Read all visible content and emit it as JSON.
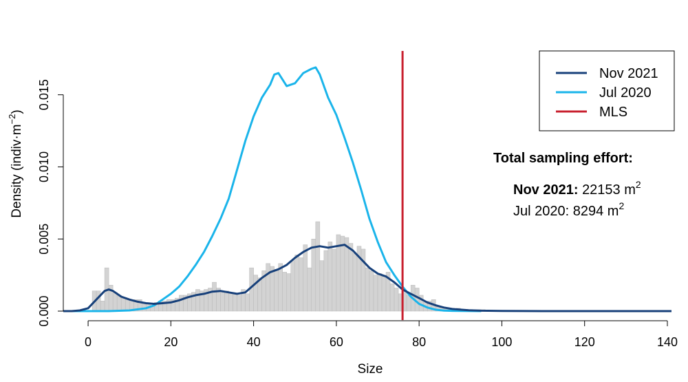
{
  "chart_data": {
    "type": "histogram+density-lines",
    "xlabel": "Size",
    "ylabel": "Density (indiv·m⁻²)",
    "ylabel_parts": {
      "main": "Density (indiv",
      "dot": "·",
      "unit": "m",
      "exp": "−2",
      "close": ")"
    },
    "xlim": [
      -5,
      141
    ],
    "ylim": [
      0,
      0.0178
    ],
    "x_ticks": [
      0,
      20,
      40,
      60,
      80,
      100,
      120,
      140
    ],
    "x_tick_labels": [
      "0",
      "20",
      "40",
      "60",
      "80",
      "100",
      "120",
      "140"
    ],
    "y_ticks": [
      0,
      0.005,
      0.01,
      0.015
    ],
    "y_tick_labels": [
      "0.000",
      "0.005",
      "0.010",
      "0.015"
    ],
    "histogram": {
      "color": "#d3d3d3",
      "bin_width": 1,
      "bins_start": [
        1,
        2,
        3,
        4,
        5,
        6,
        7,
        8,
        9,
        10,
        11,
        12,
        13,
        14,
        15,
        16,
        17,
        18,
        19,
        20,
        21,
        22,
        23,
        24,
        25,
        26,
        27,
        28,
        29,
        30,
        31,
        32,
        33,
        34,
        35,
        36,
        37,
        38,
        39,
        40,
        41,
        42,
        43,
        44,
        45,
        46,
        47,
        48,
        49,
        50,
        51,
        52,
        53,
        54,
        55,
        56,
        57,
        58,
        59,
        60,
        61,
        62,
        63,
        64,
        65,
        66,
        67,
        68,
        69,
        70,
        71,
        72,
        73,
        74,
        75,
        76,
        77,
        78,
        79,
        80,
        81,
        82,
        83,
        84,
        85,
        86,
        87,
        88,
        89,
        90,
        91,
        92,
        93,
        94,
        95
      ],
      "values": [
        0.0014,
        0.0014,
        0.0007,
        0.003,
        0.0018,
        0.0013,
        0.0011,
        0.0009,
        0.0008,
        0.0007,
        0.0008,
        0.0008,
        0.0006,
        0.0005,
        0.0004,
        0.0006,
        0.0007,
        0.0007,
        0.0008,
        0.0008,
        0.0009,
        0.0011,
        0.0011,
        0.0012,
        0.0013,
        0.0015,
        0.0014,
        0.0015,
        0.0016,
        0.002,
        0.0016,
        0.0013,
        0.0014,
        0.0013,
        0.0012,
        0.0011,
        0.0015,
        0.0012,
        0.003,
        0.0025,
        0.0023,
        0.0028,
        0.0033,
        0.0031,
        0.0029,
        0.0033,
        0.0027,
        0.0026,
        0.0035,
        0.0039,
        0.0037,
        0.0046,
        0.003,
        0.005,
        0.0062,
        0.0035,
        0.0042,
        0.0048,
        0.0043,
        0.0053,
        0.0052,
        0.0051,
        0.0047,
        0.004,
        0.0045,
        0.0043,
        0.003,
        0.0028,
        0.0025,
        0.0026,
        0.0024,
        0.0027,
        0.0019,
        0.0016,
        0.0012,
        0.0014,
        0.0011,
        0.0018,
        0.0016,
        0.0011,
        0.0006,
        0.0007,
        0.0008,
        0.0003,
        0.0003,
        0.0002,
        0.0002,
        0.0001,
        0.0002,
        0.0001,
        0.0001,
        0.0001,
        0.0001,
        0.0001,
        0.0001
      ]
    },
    "series": [
      {
        "name": "Nov 2021",
        "color": "#17407a",
        "x": [
          -6,
          -4,
          -2,
          0,
          2,
          4,
          5,
          6,
          8,
          10,
          12,
          14,
          16,
          18,
          20,
          22,
          24,
          26,
          28,
          30,
          32,
          34,
          36,
          38,
          40,
          42,
          44,
          46,
          48,
          50,
          52,
          54,
          56,
          58,
          60,
          62,
          64,
          66,
          68,
          70,
          72,
          74,
          76,
          78,
          80,
          82,
          84,
          86,
          88,
          90,
          92,
          95,
          100,
          110,
          120,
          130,
          141
        ],
        "y": [
          0,
          0,
          5e-05,
          0.0002,
          0.0008,
          0.0014,
          0.0015,
          0.0014,
          0.001,
          0.0008,
          0.00065,
          0.00055,
          0.0005,
          0.00055,
          0.0006,
          0.00075,
          0.00095,
          0.0011,
          0.0012,
          0.00135,
          0.0014,
          0.0013,
          0.0012,
          0.0013,
          0.0018,
          0.0023,
          0.0027,
          0.0029,
          0.0032,
          0.0037,
          0.0041,
          0.0044,
          0.0045,
          0.0044,
          0.0045,
          0.0046,
          0.0042,
          0.0036,
          0.003,
          0.0026,
          0.0024,
          0.002,
          0.0015,
          0.0012,
          0.0009,
          0.0006,
          0.0004,
          0.00025,
          0.00015,
          0.0001,
          6e-05,
          3e-05,
          1e-05,
          0,
          0,
          0,
          0
        ]
      },
      {
        "name": "Jul 2020",
        "color": "#1ab4ea",
        "x": [
          -6,
          0,
          5,
          10,
          14,
          16,
          18,
          20,
          22,
          24,
          26,
          28,
          30,
          32,
          34,
          36,
          38,
          40,
          42,
          44,
          45,
          46,
          48,
          50,
          52,
          54,
          55,
          56,
          58,
          60,
          62,
          64,
          66,
          68,
          70,
          72,
          74,
          76,
          78,
          80,
          82,
          84,
          86,
          88,
          90,
          95
        ],
        "y": [
          0,
          0,
          0,
          5e-05,
          0.0002,
          0.0004,
          0.0008,
          0.0012,
          0.0017,
          0.0024,
          0.0032,
          0.0041,
          0.0052,
          0.0064,
          0.0078,
          0.0098,
          0.0118,
          0.0135,
          0.0148,
          0.0157,
          0.0164,
          0.0165,
          0.0156,
          0.0158,
          0.0165,
          0.0168,
          0.0169,
          0.0164,
          0.0148,
          0.0136,
          0.012,
          0.0103,
          0.0084,
          0.0064,
          0.0048,
          0.0034,
          0.0025,
          0.0017,
          0.001,
          0.0005,
          0.00025,
          0.0001,
          4e-05,
          2e-05,
          1e-05,
          0
        ]
      }
    ],
    "mls": {
      "name": "MLS",
      "x": 76,
      "color": "#c8202f"
    },
    "legend": {
      "placement": "top-right",
      "entries": [
        {
          "label": "Nov 2021",
          "color": "#17407a"
        },
        {
          "label": "Jul 2020",
          "color": "#1ab4ea"
        },
        {
          "label": "MLS",
          "color": "#c8202f"
        }
      ]
    },
    "annotation": {
      "title": "Total sampling effort:",
      "line1_bold": "Nov 2021:",
      "line1_value": "22153 m",
      "line1_exp": "2",
      "line2_value": "Jul 2020: 8294 m",
      "line2_exp": "2"
    }
  }
}
